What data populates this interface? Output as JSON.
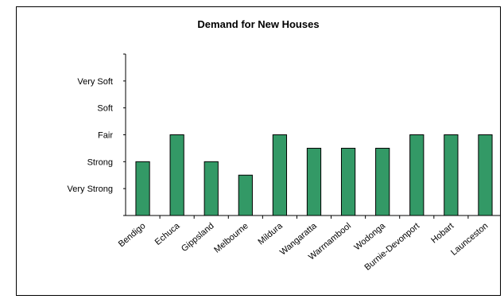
{
  "chart_data": {
    "type": "bar",
    "title": "Demand for New Houses",
    "xlabel": "",
    "ylabel": "",
    "categories": [
      "Bendigo",
      "Echuca",
      "Gippsland",
      "Melbourne",
      "Mildura",
      "Wangaratta",
      "Warrnambool",
      "Wodonga",
      "Burnie-Devonport",
      "Hobart",
      "Launceston"
    ],
    "values": [
      2,
      3,
      2,
      1.5,
      3,
      2.5,
      2.5,
      2.5,
      3,
      3,
      3
    ],
    "y_ticks": [
      {
        "value": 1,
        "label": "Very Strong"
      },
      {
        "value": 2,
        "label": "Strong"
      },
      {
        "value": 3,
        "label": "Fair"
      },
      {
        "value": 4,
        "label": "Soft"
      },
      {
        "value": 5,
        "label": "Very Soft"
      }
    ],
    "ylim": [
      0,
      6
    ],
    "grid": false,
    "legend": "none",
    "bar_color": "#339966",
    "bar_edge_color": "#000000"
  }
}
